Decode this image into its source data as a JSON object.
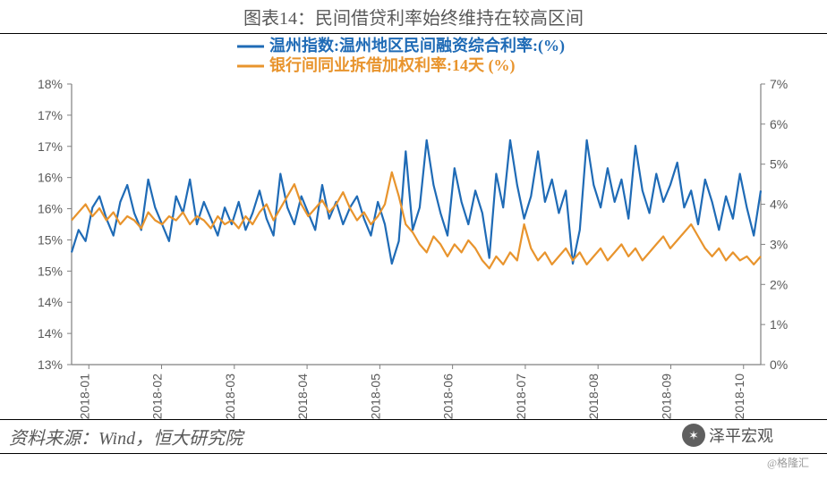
{
  "title": "图表14：民间借贷利率始终维持在较高区间",
  "source": "资料来源：Wind，恒大研究院",
  "watermark_main": "泽平宏观",
  "watermark_small": "@格隆汇",
  "chart": {
    "type": "dual-axis-line",
    "background_color": "#ffffff",
    "axis_color": "#808080",
    "tick_color": "#808080",
    "tick_font_size": 14,
    "font_family": "Arial, sans-serif",
    "legend": {
      "items": [
        {
          "label": "温州指数:温州地区民间融资综合利率:(%)",
          "color": "#1f6bb6"
        },
        {
          "label": "银行间同业拆借加权利率:14天 (%)",
          "color": "#e8942d"
        }
      ],
      "font_size": 18,
      "position": "top-center"
    },
    "left_axis": {
      "min": 13,
      "max": 18,
      "ticks": [
        13,
        14,
        14,
        15,
        15,
        16,
        16,
        17,
        17,
        18
      ],
      "tick_labels": [
        "13%",
        "14%",
        "14%",
        "15%",
        "15%",
        "16%",
        "16%",
        "17%",
        "17%",
        "18%"
      ]
    },
    "right_axis": {
      "min": 0,
      "max": 7,
      "ticks": [
        0,
        1,
        2,
        3,
        4,
        5,
        6,
        7
      ],
      "tick_labels": [
        "0%",
        "1%",
        "2%",
        "3%",
        "4%",
        "5%",
        "6%",
        "7%"
      ]
    },
    "x_axis": {
      "labels": [
        "2018-01",
        "2018-02",
        "2018-03",
        "2018-04",
        "2018-05",
        "2018-06",
        "2018-07",
        "2018-08",
        "2018-09",
        "2018-10"
      ],
      "rotation": -90
    },
    "series": [
      {
        "name": "wenzhou",
        "axis": "left",
        "color": "#1f6bb6",
        "line_width": 2.2,
        "data": [
          15.0,
          15.4,
          15.2,
          15.8,
          16.0,
          15.6,
          15.3,
          15.9,
          16.2,
          15.7,
          15.4,
          16.3,
          15.8,
          15.5,
          15.2,
          16.0,
          15.7,
          16.3,
          15.5,
          15.9,
          15.6,
          15.3,
          15.8,
          15.5,
          15.9,
          15.4,
          15.7,
          16.1,
          15.6,
          15.3,
          16.4,
          15.8,
          15.5,
          16.0,
          15.7,
          15.4,
          16.2,
          15.6,
          15.9,
          15.5,
          15.8,
          16.0,
          15.6,
          15.3,
          15.9,
          15.5,
          14.8,
          15.2,
          16.8,
          15.4,
          15.8,
          17.0,
          16.2,
          15.7,
          15.3,
          16.5,
          15.9,
          15.5,
          16.1,
          15.7,
          14.9,
          16.4,
          15.8,
          17.0,
          16.2,
          15.6,
          16.0,
          16.8,
          15.9,
          16.3,
          15.7,
          16.1,
          14.8,
          15.4,
          17.0,
          16.2,
          15.8,
          16.5,
          15.9,
          16.3,
          15.6,
          16.9,
          16.1,
          15.7,
          16.4,
          15.9,
          16.2,
          16.6,
          15.8,
          16.1,
          15.5,
          16.3,
          15.9,
          15.4,
          16.0,
          15.6,
          16.4,
          15.8,
          15.3,
          16.1
        ]
      },
      {
        "name": "interbank",
        "axis": "right",
        "color": "#e8942d",
        "line_width": 2.2,
        "data": [
          3.6,
          3.8,
          4.0,
          3.7,
          3.9,
          3.6,
          3.8,
          3.5,
          3.7,
          3.6,
          3.4,
          3.8,
          3.6,
          3.5,
          3.7,
          3.6,
          3.8,
          3.5,
          3.7,
          3.6,
          3.4,
          3.7,
          3.5,
          3.6,
          3.4,
          3.7,
          3.5,
          3.8,
          4.0,
          3.6,
          3.9,
          4.2,
          4.5,
          4.0,
          3.7,
          3.9,
          4.1,
          3.8,
          4.0,
          4.3,
          3.9,
          3.6,
          3.8,
          3.5,
          3.7,
          4.0,
          4.8,
          4.2,
          3.5,
          3.3,
          3.0,
          2.8,
          3.2,
          3.0,
          2.7,
          3.0,
          2.8,
          3.1,
          2.9,
          2.6,
          2.4,
          2.7,
          2.5,
          2.8,
          2.6,
          3.5,
          2.9,
          2.6,
          2.8,
          2.5,
          2.7,
          2.9,
          2.6,
          2.8,
          2.5,
          2.7,
          2.9,
          2.6,
          2.8,
          3.0,
          2.7,
          2.9,
          2.6,
          2.8,
          3.0,
          3.2,
          2.9,
          3.1,
          3.3,
          3.5,
          3.2,
          2.9,
          2.7,
          2.9,
          2.6,
          2.8,
          2.6,
          2.7,
          2.5,
          2.7
        ]
      }
    ]
  }
}
